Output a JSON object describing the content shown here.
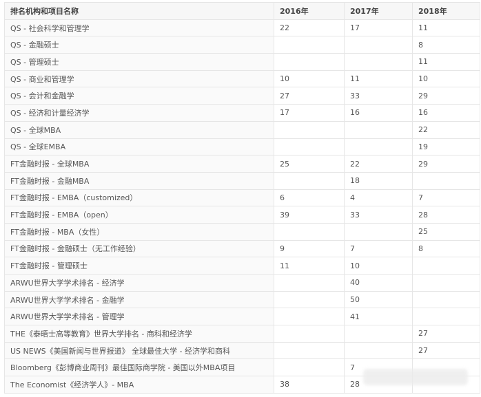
{
  "table": {
    "headers": [
      "排名机构和项目名称",
      "2016年",
      "2017年",
      "2018年"
    ],
    "rows": [
      [
        "QS - 社会科学和管理学",
        "22",
        "17",
        "11"
      ],
      [
        "QS - 金融硕士",
        "",
        "",
        "8"
      ],
      [
        "QS - 管理硕士",
        "",
        "",
        "11"
      ],
      [
        "QS - 商业和管理学",
        "10",
        "11",
        "10"
      ],
      [
        "QS - 会计和金融学",
        "27",
        "33",
        "29"
      ],
      [
        "QS - 经济和计量经济学",
        "17",
        "16",
        "16"
      ],
      [
        "QS - 全球MBA",
        "",
        "",
        "22"
      ],
      [
        "QS - 全球EMBA",
        "",
        "",
        "19"
      ],
      [
        "FT金融时报 - 全球MBA",
        "25",
        "22",
        "29"
      ],
      [
        "FT金融时报 - 金融MBA",
        "",
        "18",
        ""
      ],
      [
        "FT金融时报 - EMBA（customized）",
        "6",
        "4",
        "7"
      ],
      [
        "FT金融时报 - EMBA（open）",
        "39",
        "33",
        "28"
      ],
      [
        "FT金融时报 - MBA（女性）",
        "",
        "",
        "25"
      ],
      [
        "FT金融时报 - 金融硕士（无工作经验）",
        "9",
        "7",
        "8"
      ],
      [
        "FT金融时报 - 管理硕士",
        "11",
        "10",
        ""
      ],
      [
        "ARWU世界大学学术排名 - 经济学",
        "",
        "40",
        ""
      ],
      [
        "ARWU世界大学学术排名 - 金融学",
        "",
        "50",
        ""
      ],
      [
        "ARWU世界大学学术排名 - 管理学",
        "",
        "41",
        ""
      ],
      [
        "THE《泰晤士高等教育》世界大学排名 - 商科和经济学",
        "",
        "",
        "27"
      ],
      [
        "US NEWS《美国新闻与世界报道》 全球最佳大学 - 经济学和商科",
        "",
        "",
        "27"
      ],
      [
        "Bloomberg《彭博商业周刊》最佳国际商学院 - 美国以外MBA项目",
        "",
        "7",
        ""
      ],
      [
        "The Economist《经济学人》- MBA",
        "38",
        "28",
        ""
      ]
    ]
  }
}
